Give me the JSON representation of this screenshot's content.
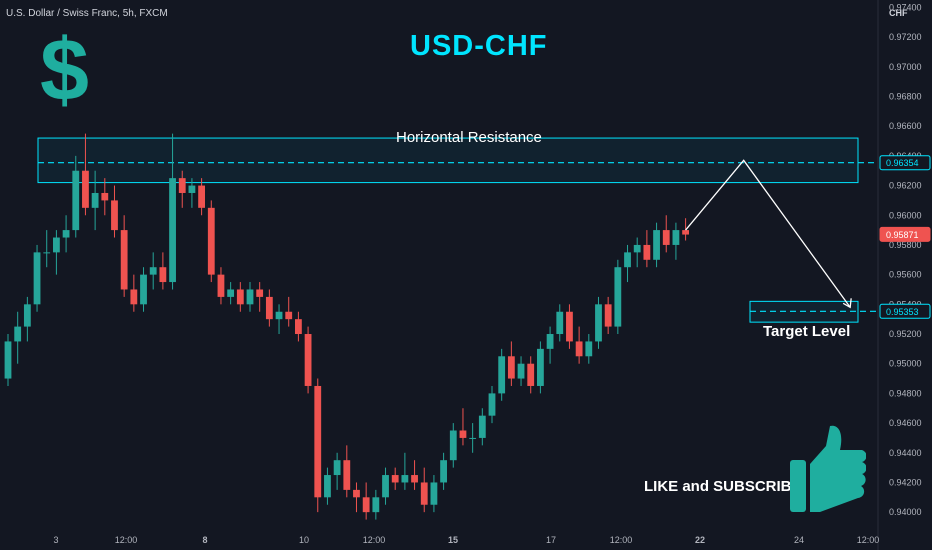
{
  "header": {
    "symbol": "U.S. Dollar / Swiss Franc, 5h, FXCM",
    "currency": "CHF"
  },
  "chart_data": {
    "type": "candlestick",
    "title": "USD-CHF",
    "ylim": [
      0.939,
      0.9745
    ],
    "y_ticks": [
      "0.97400",
      "0.97200",
      "0.97000",
      "0.96800",
      "0.96600",
      "0.96400",
      "0.96200",
      "0.96000",
      "0.95800",
      "0.95600",
      "0.95400",
      "0.95200",
      "0.95000",
      "0.94800",
      "0.94600",
      "0.94400",
      "0.94200",
      "0.94000"
    ],
    "x_labels": [
      "3",
      "12:00",
      "8",
      "10",
      "12:00",
      "15",
      "17",
      "12:00",
      "22",
      "24",
      "12:00"
    ],
    "price_tags": [
      {
        "label": "0.96354",
        "value": 0.96354,
        "color": "#00e5ff"
      },
      {
        "label": "0.95871",
        "value": 0.95871,
        "color": "#ef5350"
      },
      {
        "label": "0.95353",
        "value": 0.95353,
        "color": "#00e5ff"
      }
    ],
    "candles": [
      [
        0.949,
        0.952,
        0.9485,
        0.9515
      ],
      [
        0.9515,
        0.9535,
        0.95,
        0.9525
      ],
      [
        0.9525,
        0.9545,
        0.9515,
        0.954
      ],
      [
        0.954,
        0.958,
        0.9535,
        0.9575
      ],
      [
        0.9575,
        0.959,
        0.9565,
        0.9575
      ],
      [
        0.9575,
        0.959,
        0.956,
        0.9585
      ],
      [
        0.9585,
        0.96,
        0.9575,
        0.959
      ],
      [
        0.959,
        0.964,
        0.9585,
        0.963
      ],
      [
        0.963,
        0.9655,
        0.96,
        0.9605
      ],
      [
        0.9605,
        0.963,
        0.959,
        0.9615
      ],
      [
        0.9615,
        0.9625,
        0.96,
        0.961
      ],
      [
        0.961,
        0.962,
        0.9585,
        0.959
      ],
      [
        0.959,
        0.96,
        0.9545,
        0.955
      ],
      [
        0.955,
        0.956,
        0.9535,
        0.954
      ],
      [
        0.954,
        0.9565,
        0.9535,
        0.956
      ],
      [
        0.956,
        0.9575,
        0.955,
        0.9565
      ],
      [
        0.9565,
        0.9575,
        0.955,
        0.9555
      ],
      [
        0.9555,
        0.9655,
        0.955,
        0.9625
      ],
      [
        0.9625,
        0.963,
        0.9605,
        0.9615
      ],
      [
        0.9615,
        0.9625,
        0.9605,
        0.962
      ],
      [
        0.962,
        0.9625,
        0.96,
        0.9605
      ],
      [
        0.9605,
        0.961,
        0.9555,
        0.956
      ],
      [
        0.956,
        0.9565,
        0.954,
        0.9545
      ],
      [
        0.9545,
        0.9555,
        0.954,
        0.955
      ],
      [
        0.955,
        0.9555,
        0.9535,
        0.954
      ],
      [
        0.954,
        0.9555,
        0.9535,
        0.955
      ],
      [
        0.955,
        0.9555,
        0.9535,
        0.9545
      ],
      [
        0.9545,
        0.955,
        0.9525,
        0.953
      ],
      [
        0.953,
        0.954,
        0.952,
        0.9535
      ],
      [
        0.9535,
        0.9545,
        0.9525,
        0.953
      ],
      [
        0.953,
        0.9535,
        0.9515,
        0.952
      ],
      [
        0.952,
        0.9525,
        0.948,
        0.9485
      ],
      [
        0.9485,
        0.949,
        0.94,
        0.941
      ],
      [
        0.941,
        0.943,
        0.9405,
        0.9425
      ],
      [
        0.9425,
        0.944,
        0.9415,
        0.9435
      ],
      [
        0.9435,
        0.9445,
        0.941,
        0.9415
      ],
      [
        0.9415,
        0.942,
        0.94,
        0.941
      ],
      [
        0.941,
        0.942,
        0.9395,
        0.94
      ],
      [
        0.94,
        0.9415,
        0.9395,
        0.941
      ],
      [
        0.941,
        0.943,
        0.9405,
        0.9425
      ],
      [
        0.9425,
        0.943,
        0.9415,
        0.942
      ],
      [
        0.942,
        0.944,
        0.9415,
        0.9425
      ],
      [
        0.9425,
        0.9435,
        0.9415,
        0.942
      ],
      [
        0.942,
        0.943,
        0.94,
        0.9405
      ],
      [
        0.9405,
        0.9425,
        0.94,
        0.942
      ],
      [
        0.942,
        0.944,
        0.9415,
        0.9435
      ],
      [
        0.9435,
        0.946,
        0.943,
        0.9455
      ],
      [
        0.9455,
        0.947,
        0.9445,
        0.945
      ],
      [
        0.945,
        0.946,
        0.944,
        0.945
      ],
      [
        0.945,
        0.947,
        0.9445,
        0.9465
      ],
      [
        0.9465,
        0.9485,
        0.946,
        0.948
      ],
      [
        0.948,
        0.951,
        0.9475,
        0.9505
      ],
      [
        0.9505,
        0.9515,
        0.9485,
        0.949
      ],
      [
        0.949,
        0.9505,
        0.9485,
        0.95
      ],
      [
        0.95,
        0.9505,
        0.948,
        0.9485
      ],
      [
        0.9485,
        0.9515,
        0.948,
        0.951
      ],
      [
        0.951,
        0.9525,
        0.95,
        0.952
      ],
      [
        0.952,
        0.954,
        0.9515,
        0.9535
      ],
      [
        0.9535,
        0.954,
        0.951,
        0.9515
      ],
      [
        0.9515,
        0.9525,
        0.95,
        0.9505
      ],
      [
        0.9505,
        0.952,
        0.95,
        0.9515
      ],
      [
        0.9515,
        0.9545,
        0.951,
        0.954
      ],
      [
        0.954,
        0.9545,
        0.952,
        0.9525
      ],
      [
        0.9525,
        0.957,
        0.952,
        0.9565
      ],
      [
        0.9565,
        0.958,
        0.9555,
        0.9575
      ],
      [
        0.9575,
        0.9585,
        0.9565,
        0.958
      ],
      [
        0.958,
        0.959,
        0.9565,
        0.957
      ],
      [
        0.957,
        0.9595,
        0.9565,
        0.959
      ],
      [
        0.959,
        0.96,
        0.9575,
        0.958
      ],
      [
        0.958,
        0.9595,
        0.957,
        0.959
      ],
      [
        0.959,
        0.9598,
        0.9583,
        0.9587
      ]
    ],
    "resistance_zone": {
      "top": 0.9652,
      "bottom": 0.9622,
      "level": 0.96354,
      "label": "Horizontal Resistance"
    },
    "target_zone": {
      "top": 0.9542,
      "bottom": 0.9528,
      "level": 0.95353,
      "label": "Target Level"
    },
    "projection": [
      {
        "candle": 70,
        "price": 0.959
      },
      {
        "candle": 76,
        "price": 0.9637
      },
      {
        "candle": 87,
        "price": 0.9538
      }
    ],
    "colors": {
      "up": "#26a69a",
      "down": "#ef5350",
      "accent": "#00e5ff",
      "background": "#131722"
    }
  },
  "branding": {
    "dollar_sign": "$",
    "cta": "LIKE and SUBSCRIBE",
    "thumb_icon": "thumbs-up-icon"
  }
}
